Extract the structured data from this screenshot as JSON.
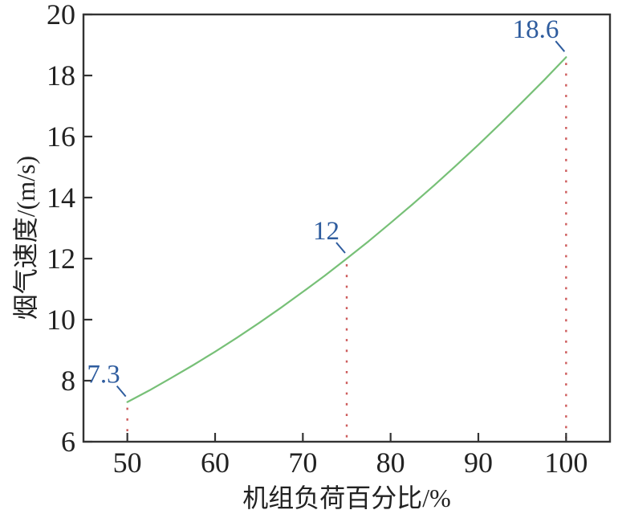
{
  "chart_data": {
    "type": "line",
    "title": "",
    "xlabel": "机组负荷百分比/%",
    "ylabel": "烟气速度/(m/s)",
    "xlim": [
      45,
      105
    ],
    "ylim": [
      6,
      20
    ],
    "xticks": [
      50,
      60,
      70,
      80,
      90,
      100
    ],
    "yticks": [
      6,
      8,
      10,
      12,
      14,
      16,
      18,
      20
    ],
    "grid": false,
    "legend": null,
    "line_color": "#77c077",
    "annotation_color": "#2e5c9e",
    "dotted_line_color": "#cd5c5c",
    "axis_color": "#333333",
    "text_color": "#222222",
    "x": [
      50,
      52.5,
      55,
      57.5,
      60,
      62.5,
      65,
      67.5,
      70,
      72.5,
      75,
      77.5,
      80,
      82.5,
      85,
      87.5,
      90,
      92.5,
      95,
      97.5,
      100
    ],
    "y": [
      7.3,
      7.68,
      8.09,
      8.51,
      8.95,
      9.41,
      9.89,
      10.39,
      10.91,
      11.44,
      12.0,
      12.57,
      13.17,
      13.78,
      14.41,
      15.06,
      15.73,
      16.42,
      17.13,
      17.85,
      18.6
    ],
    "annotations": [
      {
        "label": "7.3",
        "x": 50,
        "y": 7.3
      },
      {
        "label": "12",
        "x": 75,
        "y": 12
      },
      {
        "label": "18.6",
        "x": 100,
        "y": 18.6
      }
    ]
  }
}
